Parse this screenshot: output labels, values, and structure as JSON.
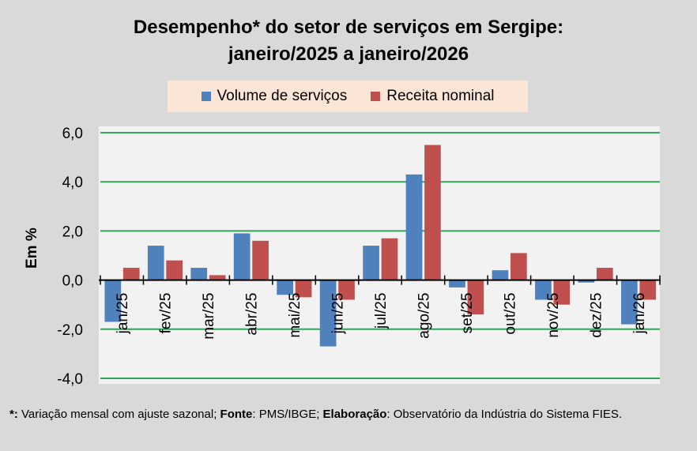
{
  "chart_data": {
    "type": "bar",
    "title_line1": "Desempenho* do setor de serviços em Sergipe:",
    "title_line2": "janeiro/2025 a janeiro/2026",
    "ylabel": "Em %",
    "xlabel": "",
    "ylim": [
      -4,
      6
    ],
    "yticks": [
      "-4,0",
      "-2,0",
      "0,0",
      "2,0",
      "4,0",
      "6,0"
    ],
    "ytick_values": [
      -4,
      -2,
      0,
      2,
      4,
      6
    ],
    "grid": true,
    "legend_position": "top",
    "categories": [
      "jan/25",
      "fev/25",
      "mar/25",
      "abr/25",
      "mai/25",
      "jun/25",
      "jul/25",
      "ago/25",
      "set/25",
      "out/25",
      "nov/25",
      "dez/25",
      "jan/26"
    ],
    "series": [
      {
        "name": "Volume de serviços",
        "color": "#4f81bd",
        "values": [
          -1.7,
          1.4,
          0.5,
          1.9,
          -0.6,
          -2.7,
          1.4,
          4.3,
          -0.3,
          0.4,
          -0.8,
          -0.1,
          -1.8
        ]
      },
      {
        "name": "Receita nominal",
        "color": "#c0504d",
        "values": [
          0.5,
          0.8,
          0.2,
          1.6,
          -0.7,
          -0.8,
          1.7,
          5.5,
          -1.4,
          1.1,
          -1.0,
          0.5,
          -0.8
        ]
      }
    ]
  },
  "footnote": {
    "star": "*:",
    "star_text": " Variação mensal com ajuste sazonal; ",
    "fonte_label": "Fonte",
    "fonte_text": ": PMS/IBGE; ",
    "elab_label": "Elaboração",
    "elab_text": ": Observatório da Indústria do Sistema FIES."
  }
}
